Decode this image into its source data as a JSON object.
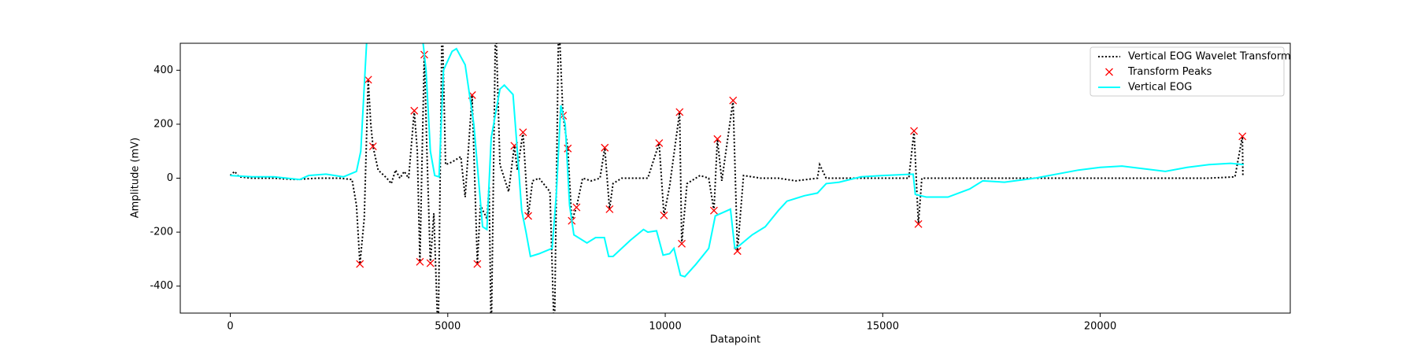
{
  "chart_data": {
    "type": "line",
    "xlabel": "Datapoint",
    "ylabel": "Amplitude (mV)",
    "xlim": [
      -1150,
      24370
    ],
    "ylim": [
      -500,
      500
    ],
    "xticks": [
      0,
      5000,
      10000,
      15000,
      20000
    ],
    "yticks": [
      -400,
      -200,
      0,
      200,
      400
    ],
    "legend": "upper right",
    "series": [
      {
        "name": "Vertical EOG Wavelet Transform",
        "type": "line",
        "style": "dotted",
        "color": "#000000",
        "x": [
          0,
          100,
          200,
          500,
          1000,
          1500,
          2000,
          2500,
          2800,
          2900,
          2980,
          3080,
          3170,
          3230,
          3280,
          3400,
          3600,
          3700,
          3800,
          3900,
          4000,
          4100,
          4230,
          4300,
          4360,
          4400,
          4460,
          4520,
          4600,
          4680,
          4780,
          4870,
          4950,
          5100,
          5300,
          5400,
          5560,
          5680,
          5750,
          5900,
          5950,
          6000,
          6100,
          6200,
          6400,
          6530,
          6600,
          6730,
          6850,
          6950,
          7100,
          7200,
          7350,
          7450,
          7550,
          7650,
          7760,
          7850,
          7960,
          8100,
          8300,
          8500,
          8610,
          8720,
          8800,
          9000,
          9300,
          9600,
          9860,
          9970,
          10100,
          10330,
          10380,
          10500,
          10800,
          11000,
          11120,
          11200,
          11300,
          11560,
          11660,
          11800,
          12200,
          12600,
          13000,
          13500,
          13550,
          13700,
          14500,
          15000,
          15600,
          15720,
          15820,
          15900,
          16500,
          17500,
          18500,
          19500,
          20500,
          21500,
          22500,
          23100,
          23270,
          23280
        ],
        "values": [
          10,
          25,
          5,
          0,
          0,
          -5,
          0,
          0,
          -5,
          -100,
          -318,
          -150,
          365,
          200,
          118,
          30,
          0,
          -20,
          30,
          0,
          25,
          0,
          250,
          100,
          -310,
          0,
          458,
          100,
          -315,
          -130,
          -600,
          600,
          50,
          60,
          80,
          -70,
          308,
          -318,
          -100,
          -150,
          -30,
          -600,
          600,
          50,
          -50,
          120,
          30,
          170,
          -140,
          -10,
          0,
          -20,
          -50,
          -600,
          600,
          232,
          110,
          -158,
          -108,
          0,
          -10,
          0,
          113,
          -115,
          -20,
          0,
          0,
          0,
          130,
          -138,
          -30,
          245,
          -243,
          -20,
          10,
          0,
          -120,
          145,
          -10,
          288,
          -270,
          10,
          0,
          0,
          -10,
          0,
          50,
          0,
          0,
          0,
          0,
          175,
          -170,
          0,
          0,
          0,
          0,
          0,
          0,
          0,
          0,
          5,
          155,
          10
        ]
      },
      {
        "name": "Transform Peaks",
        "type": "scatter",
        "color": "#ff0000",
        "x": [
          2980,
          3170,
          3280,
          4230,
          4360,
          4460,
          4600,
          5560,
          5680,
          6530,
          6730,
          6850,
          7650,
          7760,
          7850,
          7960,
          8610,
          8720,
          9860,
          9970,
          10330,
          10380,
          11120,
          11200,
          11560,
          11660,
          15720,
          15820,
          23270
        ],
        "values": [
          -318,
          365,
          118,
          250,
          -310,
          458,
          -315,
          308,
          -318,
          120,
          170,
          -140,
          232,
          110,
          -158,
          -108,
          113,
          -115,
          130,
          -138,
          245,
          -243,
          -120,
          145,
          288,
          -270,
          175,
          -170,
          155
        ]
      },
      {
        "name": "Vertical EOG",
        "type": "line",
        "style": "solid",
        "color": "#00ffff",
        "x": [
          0,
          500,
          1000,
          1600,
          1800,
          2200,
          2600,
          2900,
          3000,
          3100,
          3150,
          4400,
          4500,
          4600,
          4700,
          4800,
          4900,
          5100,
          5200,
          5400,
          5600,
          5800,
          5900,
          6000,
          6200,
          6300,
          6500,
          6600,
          6700,
          6800,
          6900,
          7100,
          7400,
          7500,
          7600,
          7700,
          7800,
          7900,
          8200,
          8400,
          8600,
          8700,
          8800,
          9200,
          9500,
          9600,
          9800,
          9950,
          10100,
          10200,
          10350,
          10450,
          10700,
          11000,
          11150,
          11500,
          11600,
          11700,
          12000,
          12300,
          12600,
          12800,
          13200,
          13500,
          13700,
          14000,
          14500,
          15000,
          15700,
          15750,
          16000,
          16500,
          17000,
          17300,
          17800,
          18500,
          19500,
          20000,
          20500,
          21000,
          21500,
          22000,
          22500,
          23000,
          23300
        ],
        "values": [
          10,
          5,
          5,
          -5,
          10,
          15,
          5,
          25,
          100,
          400,
          550,
          550,
          400,
          100,
          10,
          5,
          400,
          470,
          480,
          420,
          200,
          -180,
          -190,
          150,
          330,
          345,
          310,
          100,
          -120,
          -200,
          -290,
          -280,
          -260,
          -50,
          270,
          200,
          -100,
          -210,
          -240,
          -220,
          -220,
          -290,
          -290,
          -230,
          -190,
          -200,
          -195,
          -285,
          -280,
          -260,
          -360,
          -365,
          -320,
          -260,
          -140,
          -115,
          -260,
          -250,
          -210,
          -180,
          -120,
          -85,
          -65,
          -55,
          -20,
          -15,
          5,
          10,
          15,
          -60,
          -70,
          -70,
          -40,
          -10,
          -15,
          0,
          30,
          40,
          45,
          35,
          25,
          40,
          50,
          55,
          50
        ]
      }
    ]
  }
}
